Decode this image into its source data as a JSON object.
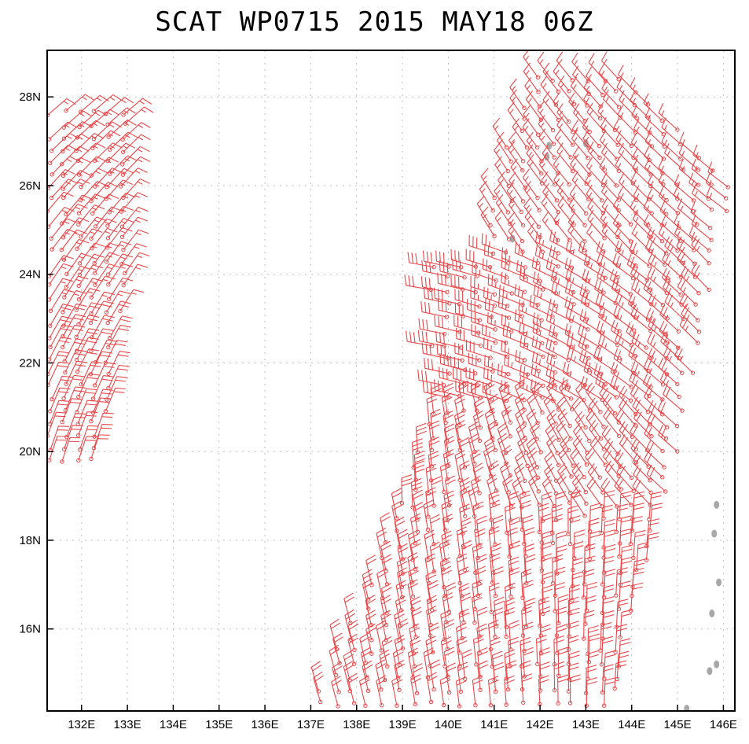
{
  "title": "SCAT WP0715 2015 MAY18 06Z",
  "map": {
    "lon_range": [
      131.25,
      146.25
    ],
    "lat_range": [
      14.15,
      29.05
    ],
    "lon_ticks": [
      {
        "value": 132,
        "label": "132E"
      },
      {
        "value": 133,
        "label": "133E"
      },
      {
        "value": 134,
        "label": "134E"
      },
      {
        "value": 135,
        "label": "135E"
      },
      {
        "value": 136,
        "label": "136E"
      },
      {
        "value": 137,
        "label": "137E"
      },
      {
        "value": 138,
        "label": "138E"
      },
      {
        "value": 139,
        "label": "139E"
      },
      {
        "value": 140,
        "label": "140E"
      },
      {
        "value": 141,
        "label": "141E"
      },
      {
        "value": 142,
        "label": "142E"
      },
      {
        "value": 143,
        "label": "143E"
      },
      {
        "value": 144,
        "label": "144E"
      },
      {
        "value": 145,
        "label": "145E"
      },
      {
        "value": 146,
        "label": "146E"
      }
    ],
    "lat_ticks": [
      {
        "value": 16,
        "label": "16N"
      },
      {
        "value": 18,
        "label": "18N"
      },
      {
        "value": 20,
        "label": "20N"
      },
      {
        "value": 22,
        "label": "22N"
      },
      {
        "value": 24,
        "label": "24N"
      },
      {
        "value": 26,
        "label": "26N"
      },
      {
        "value": 28,
        "label": "28N"
      }
    ],
    "grid": "dotted",
    "barb_color": "#e8474a",
    "land_color": "#a8a8a8",
    "islands": [
      {
        "lon": 143.0,
        "lat": 26.95
      },
      {
        "lon": 142.2,
        "lat": 26.9
      },
      {
        "lon": 142.15,
        "lat": 26.65
      },
      {
        "lon": 141.4,
        "lat": 24.8
      },
      {
        "lon": 145.85,
        "lat": 18.8
      },
      {
        "lon": 145.8,
        "lat": 18.15
      },
      {
        "lon": 145.9,
        "lat": 17.05
      },
      {
        "lon": 145.75,
        "lat": 16.35
      },
      {
        "lon": 145.7,
        "lat": 15.05
      },
      {
        "lon": 145.85,
        "lat": 15.2
      },
      {
        "lon": 145.2,
        "lat": 14.2
      }
    ],
    "wind_regions": [
      {
        "name": "west-coast-strip",
        "lon": [
          131.3,
          133.2
        ],
        "lat": [
          19.7,
          28.0
        ],
        "dir": 40,
        "kt": 15
      },
      {
        "name": "north-swath",
        "lon": [
          140.7,
          146.1
        ],
        "lat": [
          24.5,
          28.7
        ],
        "dir": 330,
        "kt": 15
      },
      {
        "name": "central-swath",
        "lon": [
          139.6,
          146.0
        ],
        "lat": [
          21.0,
          24.5
        ],
        "dir": 305,
        "kt": 25
      },
      {
        "name": "south-swath",
        "lon": [
          137.0,
          145.0
        ],
        "lat": [
          14.2,
          21.0
        ],
        "dir": 10,
        "kt": 20
      }
    ]
  }
}
